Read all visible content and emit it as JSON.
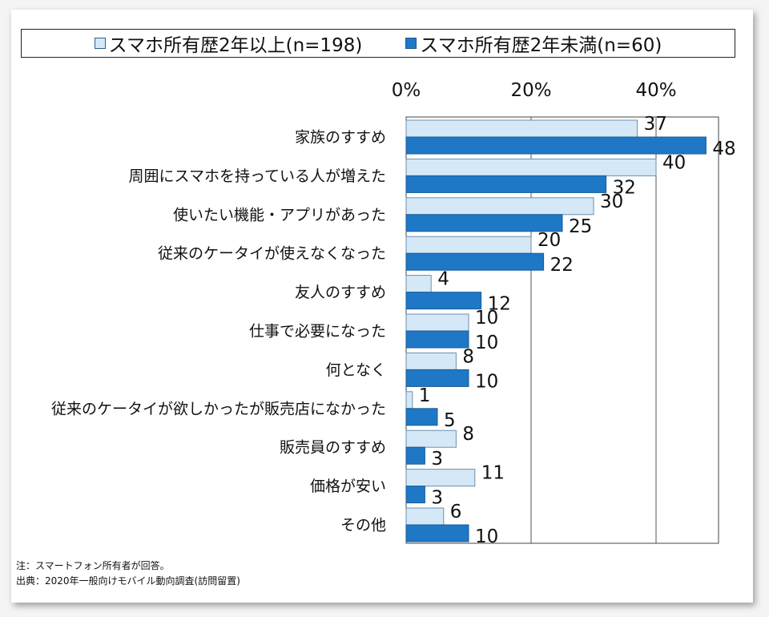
{
  "legend": {
    "series1": "スマホ所有歴2年以上(n=198)",
    "series2": "スマホ所有歴2年未満(n=60)"
  },
  "colors": {
    "series1": "#d5e8f7",
    "series2": "#1f78c6",
    "series1_stroke": "#6a8fb0",
    "series2_stroke": "#1a5a94"
  },
  "notes": {
    "note": "注：スマートフォン所有者が回答。",
    "source": "出典：2020年一般向けモバイル動向調査(訪問留置)"
  },
  "chart_data": {
    "type": "bar",
    "orientation": "horizontal",
    "xlim": [
      0,
      50
    ],
    "x_ticks": [
      0,
      20,
      40
    ],
    "x_tick_labels": [
      "0%",
      "20%",
      "40%"
    ],
    "grid": true,
    "legend_position": "top",
    "categories": [
      "家族のすすめ",
      "周囲にスマホを持っている人が増えた",
      "使いたい機能・アプリがあった",
      "従来のケータイが使えなくなった",
      "友人のすすめ",
      "仕事で必要になった",
      "何となく",
      "従来のケータイが欲しかったが販売店になかった",
      "販売員のすすめ",
      "価格が安い",
      "その他"
    ],
    "series": [
      {
        "name": "スマホ所有歴2年以上(n=198)",
        "values": [
          37,
          40,
          30,
          20,
          4,
          10,
          8,
          1,
          8,
          11,
          6
        ]
      },
      {
        "name": "スマホ所有歴2年未満(n=60)",
        "values": [
          48,
          32,
          25,
          22,
          12,
          10,
          10,
          5,
          3,
          3,
          10
        ]
      }
    ]
  }
}
